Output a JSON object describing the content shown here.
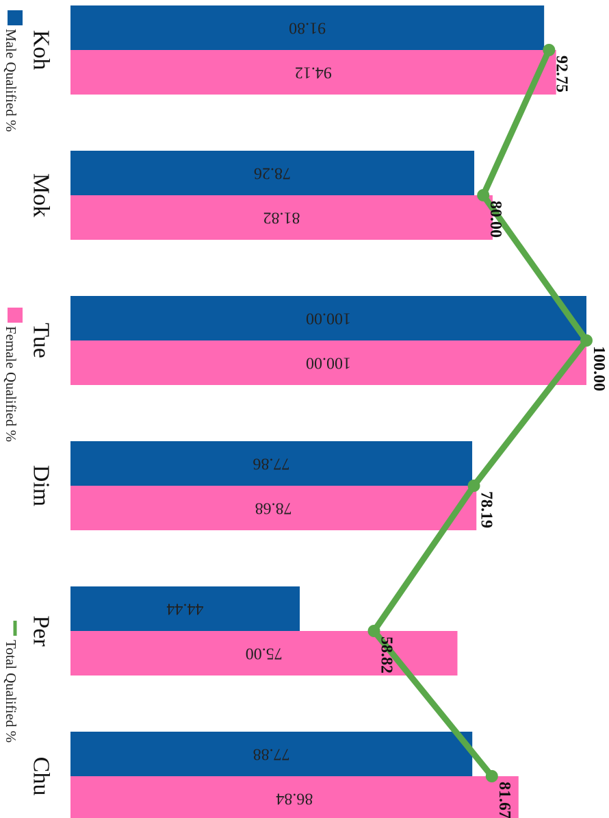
{
  "chart_data": {
    "type": "bar",
    "orientation": "horizontal",
    "categories": [
      "Koh",
      "Mok",
      "Tue",
      "Dim",
      "Per",
      "Chu"
    ],
    "series": [
      {
        "name": "Male Qualified %",
        "kind": "bar",
        "color": "#0a5aa0",
        "values": [
          91.8,
          78.26,
          100.0,
          77.86,
          44.44,
          77.88
        ]
      },
      {
        "name": "Female Qualified %",
        "kind": "bar",
        "color": "#ff69b4",
        "values": [
          94.12,
          81.82,
          100.0,
          78.68,
          75.0,
          86.84
        ]
      },
      {
        "name": "Total Qualified %",
        "kind": "line",
        "color": "#5aa84a",
        "values": [
          92.75,
          80.0,
          100.0,
          78.19,
          58.82,
          81.67
        ]
      }
    ],
    "xlim": [
      0,
      100
    ],
    "grid": false,
    "legend": "left"
  }
}
